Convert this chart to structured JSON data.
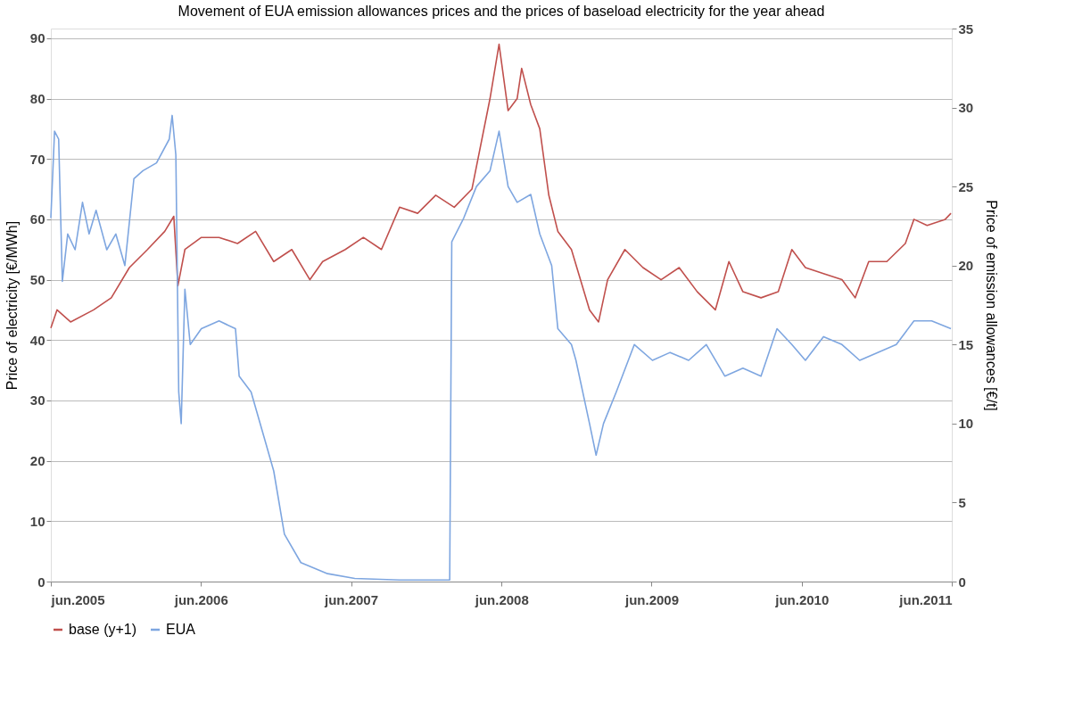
{
  "chart_data": {
    "type": "line",
    "title": "Movement of EUA emission allowances prices and the prices of baseload electricity for the year ahead",
    "ylabel": "Price of electricity [€/MWh]",
    "y2label": "Price of emission allowances [€/t]",
    "xlim": [
      "2005-06-01",
      "2011-06-01"
    ],
    "xticks": [
      {
        "value": "2005-06-01",
        "label": "jun.2005"
      },
      {
        "value": "2006-06-01",
        "label": "jun.2006"
      },
      {
        "value": "2007-06-01",
        "label": "jun.2007"
      },
      {
        "value": "2008-06-01",
        "label": "jun.2008"
      },
      {
        "value": "2009-06-01",
        "label": "jun.2009"
      },
      {
        "value": "2010-06-01",
        "label": "jun.2010"
      },
      {
        "value": "2011-06-01",
        "label": "jun.2011"
      }
    ],
    "ylim": [
      0,
      91.6
    ],
    "yticks": [
      0,
      10,
      20,
      30,
      40,
      50,
      60,
      70,
      80,
      90
    ],
    "y2lim": [
      0,
      35
    ],
    "y2ticks": [
      0,
      5,
      10,
      15,
      20,
      25,
      30,
      35
    ],
    "grid": "y",
    "legend": "bottom",
    "line_style": "solid",
    "marker": "none",
    "series": [
      {
        "name": "base (y+1)",
        "color": "#c0504d",
        "x": [
          "2005-06-01",
          "2005-06-16",
          "2005-07-19",
          "2005-09-13",
          "2005-10-26",
          "2005-12-09",
          "2006-01-22",
          "2006-03-05",
          "2006-03-27",
          "2006-04-06",
          "2006-04-23",
          "2006-06-02",
          "2006-07-15",
          "2006-08-29",
          "2006-10-12",
          "2006-11-25",
          "2007-01-08",
          "2007-02-21",
          "2007-03-24",
          "2007-05-18",
          "2007-07-01",
          "2007-08-14",
          "2007-09-27",
          "2007-11-10",
          "2007-12-24",
          "2008-02-07",
          "2008-03-21",
          "2008-05-04",
          "2008-05-26",
          "2008-06-17",
          "2008-07-09",
          "2008-07-20",
          "2008-08-11",
          "2008-09-02",
          "2008-09-24",
          "2008-10-16",
          "2008-11-18",
          "2009-01-01",
          "2009-01-23",
          "2009-02-14",
          "2009-03-28",
          "2009-05-11",
          "2009-06-24",
          "2009-08-07",
          "2009-09-20",
          "2009-11-03",
          "2009-12-06",
          "2010-01-09",
          "2010-02-22",
          "2010-04-05",
          "2010-05-08",
          "2010-06-10",
          "2010-07-24",
          "2010-09-07",
          "2010-10-09",
          "2010-11-11",
          "2010-12-25",
          "2011-02-08",
          "2011-03-01",
          "2011-04-02",
          "2011-05-16",
          "2011-05-30"
        ],
        "values": [
          42,
          45,
          43,
          45,
          47,
          52,
          55,
          58,
          60.5,
          49,
          55,
          57,
          57,
          56,
          58,
          53,
          55,
          50,
          53,
          55,
          57,
          55,
          62,
          61,
          64,
          62,
          65,
          80,
          89,
          78,
          80,
          85,
          79,
          75,
          64,
          58,
          55,
          45,
          43,
          50,
          55,
          52,
          50,
          52,
          48,
          45,
          53,
          48,
          47,
          48,
          55,
          52,
          51,
          50,
          47,
          53,
          53,
          56,
          60,
          59,
          60,
          61
        ]
      },
      {
        "name": "EUA",
        "color": "#7ea6e0",
        "axis": "y2",
        "x": [
          "2005-06-01",
          "2005-06-10",
          "2005-06-20",
          "2005-06-29",
          "2005-07-12",
          "2005-07-30",
          "2005-08-17",
          "2005-09-02",
          "2005-09-19",
          "2005-10-15",
          "2005-11-06",
          "2005-11-28",
          "2005-12-20",
          "2006-01-11",
          "2006-02-13",
          "2006-03-16",
          "2006-03-23",
          "2006-04-01",
          "2006-04-08",
          "2006-04-14",
          "2006-04-23",
          "2006-05-06",
          "2006-06-02",
          "2006-07-15",
          "2006-08-24",
          "2006-09-02",
          "2006-10-01",
          "2006-11-03",
          "2006-11-25",
          "2006-12-21",
          "2007-01-30",
          "2007-04-05",
          "2007-06-10",
          "2007-09-27",
          "2008-01-27",
          "2008-02-01",
          "2008-03-01",
          "2008-04-01",
          "2008-05-04",
          "2008-05-26",
          "2008-06-17",
          "2008-07-09",
          "2008-08-11",
          "2008-09-02",
          "2008-10-01",
          "2008-10-16",
          "2008-11-18",
          "2008-11-29",
          "2009-01-01",
          "2009-01-17",
          "2009-02-04",
          "2009-03-07",
          "2009-04-20",
          "2009-06-03",
          "2009-07-16",
          "2009-08-30",
          "2009-10-12",
          "2009-11-26",
          "2010-01-09",
          "2010-02-22",
          "2010-04-02",
          "2010-05-08",
          "2010-06-10",
          "2010-07-24",
          "2010-09-07",
          "2010-10-20",
          "2010-12-03",
          "2011-01-17",
          "2011-03-01",
          "2011-04-13",
          "2011-05-30"
        ],
        "values": [
          23,
          28.5,
          28,
          19,
          22,
          21,
          24,
          22,
          23.5,
          21,
          22,
          20,
          25.5,
          26,
          26.5,
          28,
          29.5,
          27,
          12,
          10,
          18.5,
          15,
          16,
          16.5,
          16,
          13,
          12,
          9,
          7,
          3,
          1.2,
          0.5,
          0.2,
          0.1,
          0.1,
          21.5,
          23,
          25,
          26,
          28.5,
          25,
          24,
          24.5,
          22,
          20,
          16,
          15,
          14,
          10,
          8,
          10,
          12,
          15,
          14,
          14.5,
          14,
          15,
          13,
          13.5,
          13,
          16,
          15,
          14,
          15.5,
          15,
          14,
          14.5,
          15,
          16.5,
          16.5,
          16
        ]
      }
    ]
  }
}
